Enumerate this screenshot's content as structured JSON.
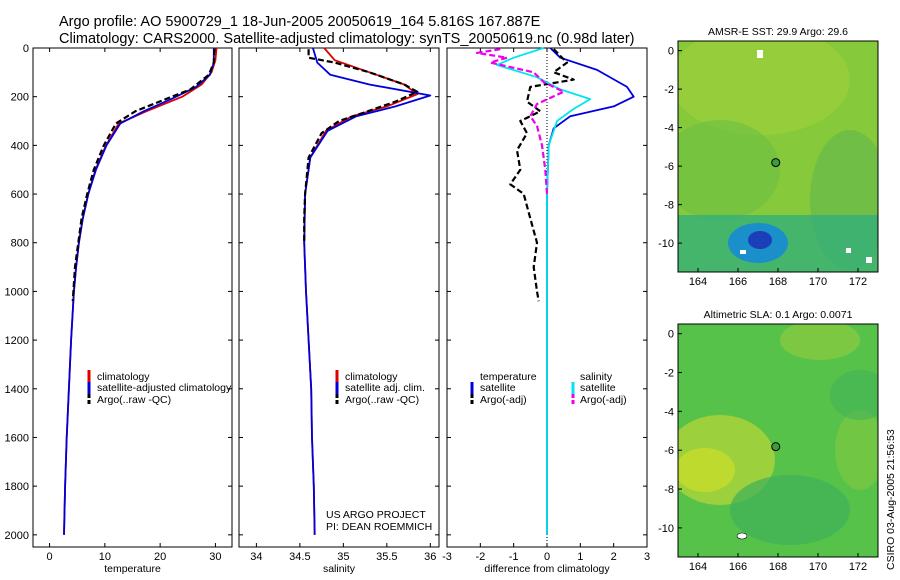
{
  "header": {
    "title_line1": "Argo profile: AO 5900729_1 18-Jun-2005 20050619_164 5.816S 167.887E",
    "title_line2": "Climatology: CARS2000. Satellite-adjusted climatology: synTS_20050619.nc (0.98d later)"
  },
  "footer": {
    "credit_line1": "US ARGO PROJECT",
    "credit_line2": "PI: DEAN ROEMMICH",
    "timestamp": "CSIRO 03-Aug-2005 21:56:53"
  },
  "colors": {
    "climatology": "#dd0000",
    "satellite": "#0000dd",
    "argo": "#000000",
    "sal_satellite": "#00e5ee",
    "sal_argo": "#ee00ee"
  },
  "chart_data": [
    {
      "id": "temperature",
      "type": "line",
      "xlabel": "temperature",
      "ylabel": "",
      "xlim": [
        -3,
        33
      ],
      "ylim": [
        2050,
        0
      ],
      "xticks": [
        0,
        10,
        20,
        30
      ],
      "yticks": [
        0,
        200,
        400,
        600,
        800,
        1000,
        1200,
        1400,
        1600,
        1800,
        2000
      ],
      "legend": [
        "climatology",
        "satellite-adjusted climatology",
        "Argo(..raw -QC)"
      ],
      "series": [
        {
          "name": "climatology",
          "color": "#dd0000",
          "style": "solid",
          "points": [
            [
              30.2,
              0
            ],
            [
              30.0,
              50
            ],
            [
              29.3,
              100
            ],
            [
              27.5,
              150
            ],
            [
              24.0,
              200
            ],
            [
              17.5,
              260
            ],
            [
              12.5,
              310
            ],
            [
              10.2,
              400
            ],
            [
              8.3,
              500
            ],
            [
              7.0,
              600
            ],
            [
              6.0,
              700
            ],
            [
              5.3,
              800
            ],
            [
              4.8,
              900
            ],
            [
              4.4,
              1000
            ],
            [
              3.9,
              1200
            ],
            [
              3.5,
              1400
            ],
            [
              3.1,
              1600
            ],
            [
              2.8,
              1800
            ],
            [
              2.6,
              2000
            ]
          ]
        },
        {
          "name": "satellite-adjusted climatology",
          "color": "#0000dd",
          "style": "solid",
          "points": [
            [
              29.7,
              0
            ],
            [
              29.7,
              60
            ],
            [
              29.0,
              110
            ],
            [
              26.5,
              160
            ],
            [
              22.0,
              210
            ],
            [
              17.0,
              260
            ],
            [
              12.8,
              310
            ],
            [
              10.3,
              400
            ],
            [
              8.4,
              500
            ],
            [
              7.0,
              600
            ],
            [
              6.0,
              700
            ],
            [
              5.3,
              800
            ],
            [
              4.8,
              900
            ],
            [
              4.4,
              1000
            ],
            [
              3.9,
              1200
            ],
            [
              3.5,
              1400
            ],
            [
              3.1,
              1600
            ],
            [
              2.8,
              1800
            ],
            [
              2.6,
              2000
            ]
          ]
        },
        {
          "name": "Argo(..raw -QC)",
          "color": "#000000",
          "style": "dashed",
          "points": [
            [
              29.8,
              5
            ],
            [
              29.7,
              60
            ],
            [
              28.8,
              110
            ],
            [
              25.5,
              170
            ],
            [
              21.0,
              210
            ],
            [
              15.5,
              260
            ],
            [
              12.0,
              310
            ],
            [
              9.8,
              400
            ],
            [
              8.0,
              500
            ],
            [
              6.8,
              600
            ],
            [
              5.8,
              700
            ],
            [
              5.2,
              800
            ],
            [
              4.6,
              900
            ],
            [
              4.3,
              1000
            ],
            [
              4.2,
              1040
            ]
          ]
        }
      ]
    },
    {
      "id": "salinity",
      "type": "line",
      "xlabel": "salinity",
      "xlim": [
        33.8,
        36.1
      ],
      "ylim": [
        2050,
        0
      ],
      "xticks": [
        34,
        34.5,
        35,
        35.5,
        36
      ],
      "legend": [
        "climatology",
        "satellite adj. clim.",
        "Argo(..raw -QC)"
      ],
      "series": [
        {
          "name": "climatology",
          "color": "#dd0000",
          "style": "solid",
          "points": [
            [
              34.78,
              0
            ],
            [
              34.9,
              50
            ],
            [
              35.3,
              100
            ],
            [
              35.7,
              150
            ],
            [
              35.85,
              190
            ],
            [
              35.5,
              240
            ],
            [
              35.1,
              280
            ],
            [
              34.8,
              340
            ],
            [
              34.62,
              450
            ],
            [
              34.56,
              600
            ],
            [
              34.55,
              800
            ],
            [
              34.57,
              1000
            ],
            [
              34.6,
              1200
            ],
            [
              34.63,
              1400
            ],
            [
              34.64,
              1600
            ],
            [
              34.66,
              1800
            ],
            [
              34.67,
              2000
            ]
          ]
        },
        {
          "name": "satellite adj. clim.",
          "color": "#0000dd",
          "style": "solid",
          "points": [
            [
              34.65,
              0
            ],
            [
              34.7,
              60
            ],
            [
              34.85,
              110
            ],
            [
              35.3,
              150
            ],
            [
              36.0,
              195
            ],
            [
              35.6,
              240
            ],
            [
              35.15,
              280
            ],
            [
              34.82,
              340
            ],
            [
              34.62,
              450
            ],
            [
              34.56,
              600
            ],
            [
              34.55,
              800
            ],
            [
              34.57,
              1000
            ],
            [
              34.6,
              1200
            ],
            [
              34.63,
              1400
            ],
            [
              34.64,
              1600
            ],
            [
              34.66,
              1800
            ],
            [
              34.67,
              2000
            ]
          ]
        },
        {
          "name": "Argo(..raw -QC)",
          "color": "#000000",
          "style": "dashed",
          "points": [
            [
              34.6,
              5
            ],
            [
              34.6,
              40
            ],
            [
              34.9,
              60
            ],
            [
              35.3,
              100
            ],
            [
              35.7,
              150
            ],
            [
              35.85,
              180
            ],
            [
              35.6,
              220
            ],
            [
              35.2,
              270
            ],
            [
              34.95,
              300
            ],
            [
              34.75,
              350
            ],
            [
              34.6,
              450
            ],
            [
              34.56,
              600
            ],
            [
              34.55,
              700
            ],
            [
              34.55,
              800
            ]
          ]
        }
      ]
    },
    {
      "id": "difference",
      "type": "line",
      "xlabel": "difference from climatology",
      "xlim": [
        -3,
        3
      ],
      "ylim": [
        2050,
        0
      ],
      "xticks": [
        -3,
        -2,
        -1,
        0,
        1,
        2,
        3
      ],
      "legend_left": [
        "temperature",
        "satellite",
        "Argo(-adj)"
      ],
      "legend_right": [
        "salinity",
        "satellite",
        "Argo(-adj)"
      ],
      "series": [
        {
          "name": "temperature satellite",
          "color": "#0000dd",
          "style": "solid",
          "points": [
            [
              0.1,
              0
            ],
            [
              0.4,
              40
            ],
            [
              1.5,
              90
            ],
            [
              2.4,
              160
            ],
            [
              2.6,
              200
            ],
            [
              2.0,
              240
            ],
            [
              0.7,
              280
            ],
            [
              0.2,
              330
            ],
            [
              0.05,
              400
            ],
            [
              0,
              600
            ],
            [
              0,
              2000
            ]
          ]
        },
        {
          "name": "temperature Argo(-adj)",
          "color": "#000000",
          "style": "dashed",
          "points": [
            [
              0.2,
              5
            ],
            [
              0.6,
              60
            ],
            [
              0.2,
              100
            ],
            [
              0.8,
              130
            ],
            [
              -0.5,
              160
            ],
            [
              -0.6,
              220
            ],
            [
              -0.2,
              260
            ],
            [
              -0.8,
              300
            ],
            [
              -0.6,
              350
            ],
            [
              -0.9,
              420
            ],
            [
              -0.8,
              500
            ],
            [
              -1.1,
              560
            ],
            [
              -0.7,
              600
            ],
            [
              -0.5,
              700
            ],
            [
              -0.3,
              800
            ],
            [
              -0.4,
              900
            ],
            [
              -0.3,
              1000
            ],
            [
              -0.25,
              1040
            ]
          ]
        },
        {
          "name": "salinity satellite",
          "color": "#00e5ee",
          "style": "solid",
          "points": [
            [
              -0.1,
              0
            ],
            [
              -1.0,
              40
            ],
            [
              -1.5,
              70
            ],
            [
              -0.3,
              120
            ],
            [
              0.4,
              170
            ],
            [
              1.3,
              210
            ],
            [
              0.8,
              250
            ],
            [
              0.3,
              300
            ],
            [
              0.05,
              400
            ],
            [
              0,
              600
            ],
            [
              0,
              2000
            ]
          ]
        },
        {
          "name": "salinity Argo(-adj)",
          "color": "#ee00ee",
          "style": "dashed",
          "points": [
            [
              -1.4,
              5
            ],
            [
              -2.1,
              20
            ],
            [
              -1.2,
              40
            ],
            [
              -1.7,
              60
            ],
            [
              -0.4,
              100
            ],
            [
              -0.1,
              140
            ],
            [
              0.5,
              180
            ],
            [
              -0.3,
              230
            ],
            [
              -0.5,
              280
            ],
            [
              -0.3,
              320
            ],
            [
              -0.15,
              400
            ],
            [
              -0.05,
              500
            ],
            [
              0,
              600
            ]
          ]
        }
      ]
    },
    {
      "id": "sst_map",
      "type": "heatmap",
      "title": "AMSR-E SST: 29.9 Argo: 29.6",
      "xlim": [
        163,
        173
      ],
      "ylim": [
        -11.5,
        0.5
      ],
      "xticks": [
        164,
        166,
        168,
        170,
        172
      ],
      "yticks": [
        0,
        -2,
        -4,
        -6,
        -8,
        -10
      ],
      "marker": [
        167.887,
        -5.816
      ]
    },
    {
      "id": "sla_map",
      "type": "heatmap",
      "title": "Altimetric SLA: 0.1 Argo: 0.0071",
      "xlim": [
        163,
        173
      ],
      "ylim": [
        -11.5,
        0.5
      ],
      "xticks": [
        164,
        166,
        168,
        170,
        172
      ],
      "yticks": [
        0,
        -2,
        -4,
        -6,
        -8,
        -10
      ],
      "marker": [
        167.887,
        -5.816
      ]
    }
  ]
}
